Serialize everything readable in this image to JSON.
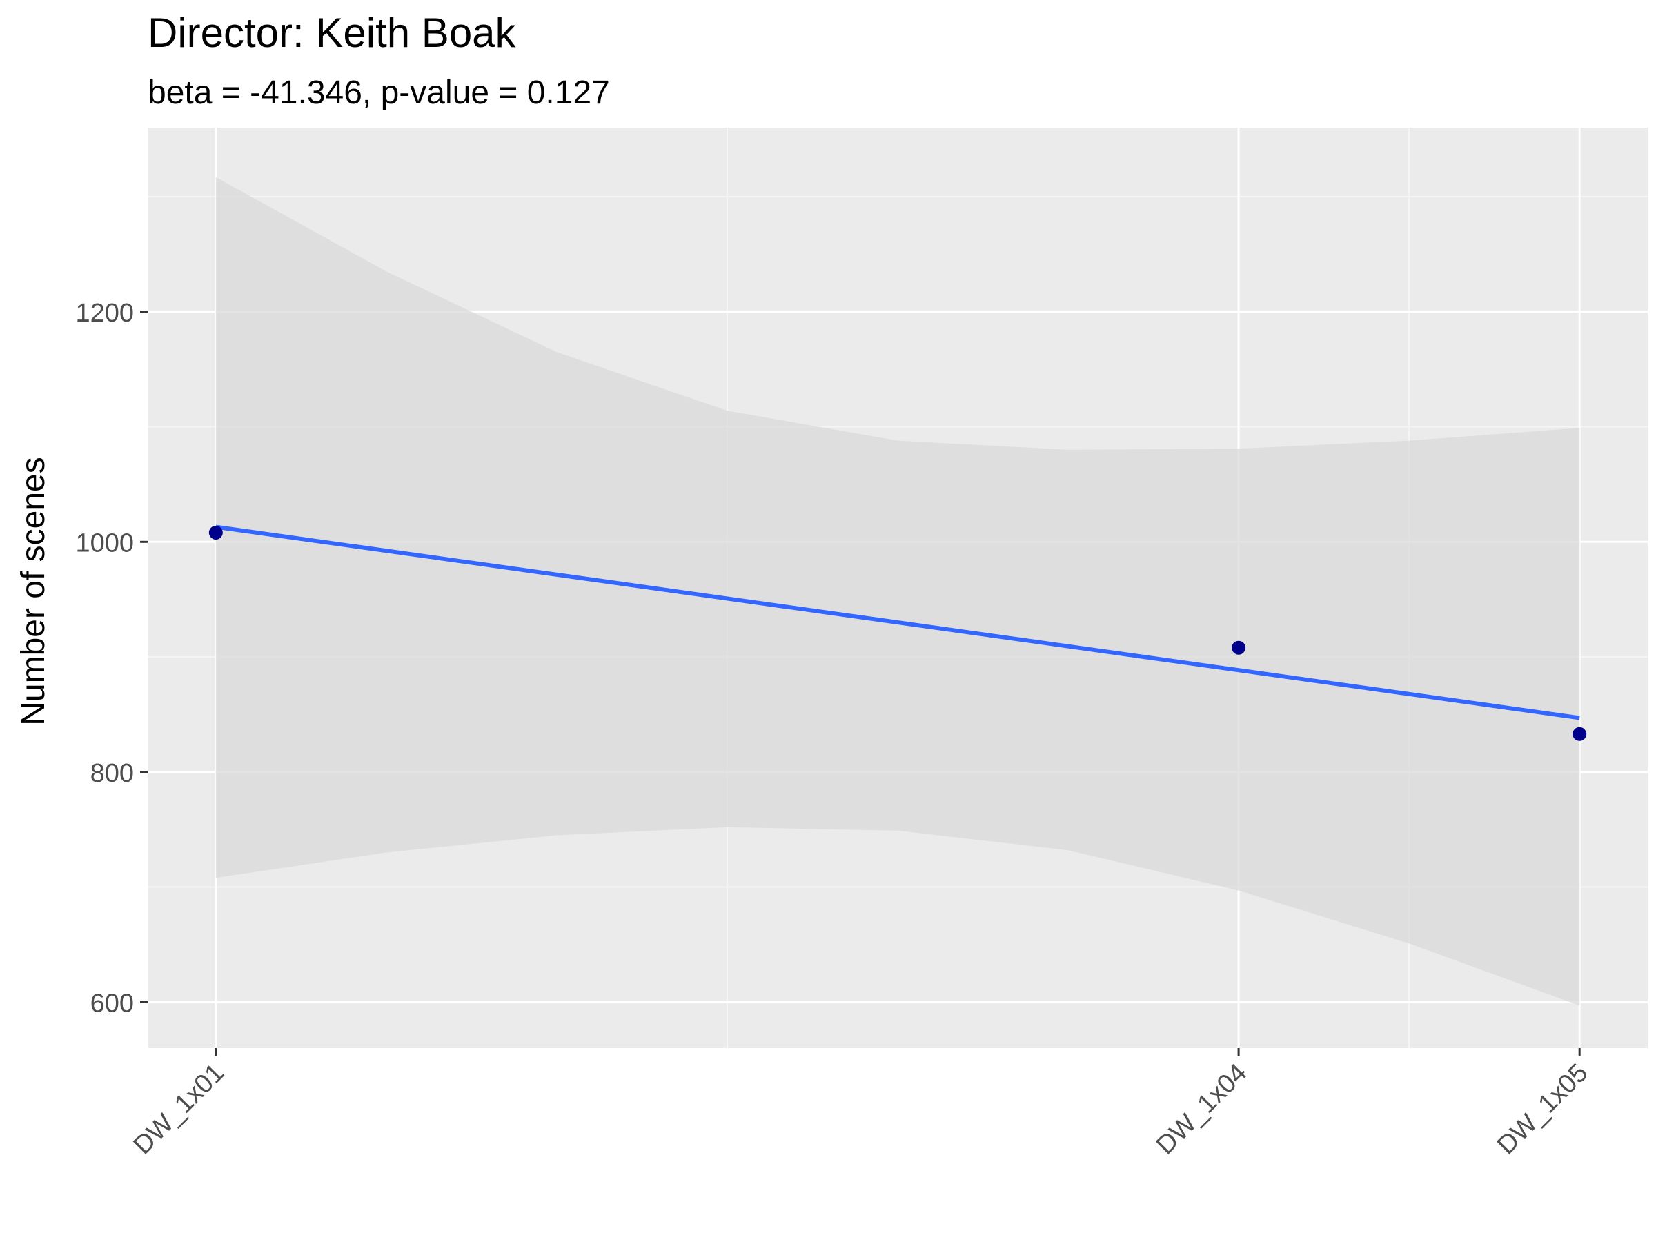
{
  "chart_data": {
    "type": "scatter",
    "title": "Director: Keith Boak",
    "subtitle": "beta = -41.346, p-value = 0.127",
    "xlabel": "",
    "ylabel": "Number of scenes",
    "x_ticks": [
      {
        "label": "DW_1x01",
        "value": 1
      },
      {
        "label": "DW_1x04",
        "value": 4
      },
      {
        "label": "DW_1x05",
        "value": 5
      }
    ],
    "y_ticks": [
      600,
      800,
      1000,
      1200
    ],
    "xlim": [
      0.8,
      5.2
    ],
    "ylim": [
      560,
      1360
    ],
    "points": [
      {
        "x": 1,
        "label": "DW_1x01",
        "y": 1008
      },
      {
        "x": 4,
        "label": "DW_1x04",
        "y": 908
      },
      {
        "x": 5,
        "label": "DW_1x05",
        "y": 833
      }
    ],
    "regression": {
      "beta": -41.346,
      "p_value": 0.127,
      "line": [
        {
          "x": 1,
          "y": 1013
        },
        {
          "x": 5,
          "y": 847
        }
      ],
      "ci_upper": [
        {
          "x": 1,
          "y": 1317
        },
        {
          "x": 1.5,
          "y": 1235
        },
        {
          "x": 2,
          "y": 1165
        },
        {
          "x": 2.5,
          "y": 1114
        },
        {
          "x": 3,
          "y": 1088
        },
        {
          "x": 3.5,
          "y": 1080
        },
        {
          "x": 4,
          "y": 1081
        },
        {
          "x": 4.5,
          "y": 1088
        },
        {
          "x": 5,
          "y": 1099
        }
      ],
      "ci_lower": [
        {
          "x": 1,
          "y": 708
        },
        {
          "x": 1.5,
          "y": 730
        },
        {
          "x": 2,
          "y": 745
        },
        {
          "x": 2.5,
          "y": 752
        },
        {
          "x": 3,
          "y": 749
        },
        {
          "x": 3.5,
          "y": 732
        },
        {
          "x": 4,
          "y": 697
        },
        {
          "x": 4.5,
          "y": 651
        },
        {
          "x": 5,
          "y": 597
        }
      ]
    },
    "grid": true,
    "legend": "none",
    "colors": {
      "panel_background": "#ebebeb",
      "grid_major": "#ffffff",
      "grid_minor": "#f5f5f5",
      "points": "#00008b",
      "line": "#3366ff",
      "ci_band": "#d9d9d9",
      "tick_text": "#4d4d4d"
    }
  }
}
